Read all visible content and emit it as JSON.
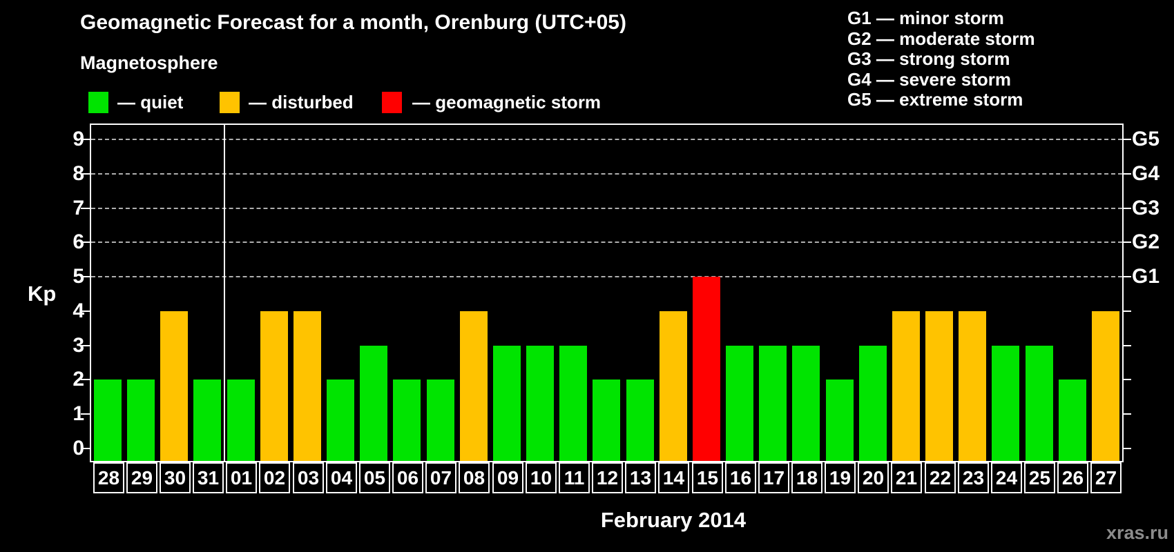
{
  "title": "Geomagnetic Forecast for a month, Orenburg (UTC+05)",
  "subtitle": "Magnetosphere",
  "legend": {
    "items": [
      {
        "key": "quiet",
        "label": "— quiet",
        "color": "#00e400"
      },
      {
        "key": "disturbed",
        "label": "— disturbed",
        "color": "#ffc300"
      },
      {
        "key": "storm",
        "label": "— geomagnetic storm",
        "color": "#ff0000"
      }
    ]
  },
  "g_scale_legend": [
    "G1 — minor storm",
    "G2 — moderate storm",
    "G3 — strong storm",
    "G4 — severe storm",
    "G5 — extreme storm"
  ],
  "axis": {
    "y_label": "Kp",
    "y_ticks": [
      0,
      1,
      2,
      3,
      4,
      5,
      6,
      7,
      8,
      9
    ],
    "right_labels": [
      {
        "kp": 5,
        "label": "G1"
      },
      {
        "kp": 6,
        "label": "G2"
      },
      {
        "kp": 7,
        "label": "G3"
      },
      {
        "kp": 8,
        "label": "G4"
      },
      {
        "kp": 9,
        "label": "G5"
      }
    ]
  },
  "month_label": "February 2014",
  "watermark": "xras.ru",
  "chart_data": {
    "type": "bar",
    "title": "Geomagnetic Forecast for a month, Orenburg (UTC+05)",
    "xlabel": "February 2014",
    "ylabel": "Kp",
    "ylim": [
      0,
      9
    ],
    "grid_kp_levels": [
      5,
      6,
      7,
      8,
      9
    ],
    "legend_position": "top-left",
    "month_separator_after_index": 3,
    "categories": [
      "28",
      "29",
      "30",
      "31",
      "01",
      "02",
      "03",
      "04",
      "05",
      "06",
      "07",
      "08",
      "09",
      "10",
      "11",
      "12",
      "13",
      "14",
      "15",
      "16",
      "17",
      "18",
      "19",
      "20",
      "21",
      "22",
      "23",
      "24",
      "25",
      "26",
      "27"
    ],
    "values": [
      2,
      2,
      4,
      2,
      2,
      4,
      4,
      2,
      3,
      2,
      2,
      4,
      3,
      3,
      3,
      2,
      2,
      4,
      5,
      3,
      3,
      3,
      2,
      3,
      4,
      4,
      4,
      3,
      3,
      2,
      4
    ],
    "statuses": [
      "quiet",
      "quiet",
      "disturbed",
      "quiet",
      "quiet",
      "disturbed",
      "disturbed",
      "quiet",
      "quiet",
      "quiet",
      "quiet",
      "disturbed",
      "quiet",
      "quiet",
      "quiet",
      "quiet",
      "quiet",
      "disturbed",
      "storm",
      "quiet",
      "quiet",
      "quiet",
      "quiet",
      "quiet",
      "disturbed",
      "disturbed",
      "disturbed",
      "quiet",
      "quiet",
      "quiet",
      "disturbed"
    ]
  }
}
